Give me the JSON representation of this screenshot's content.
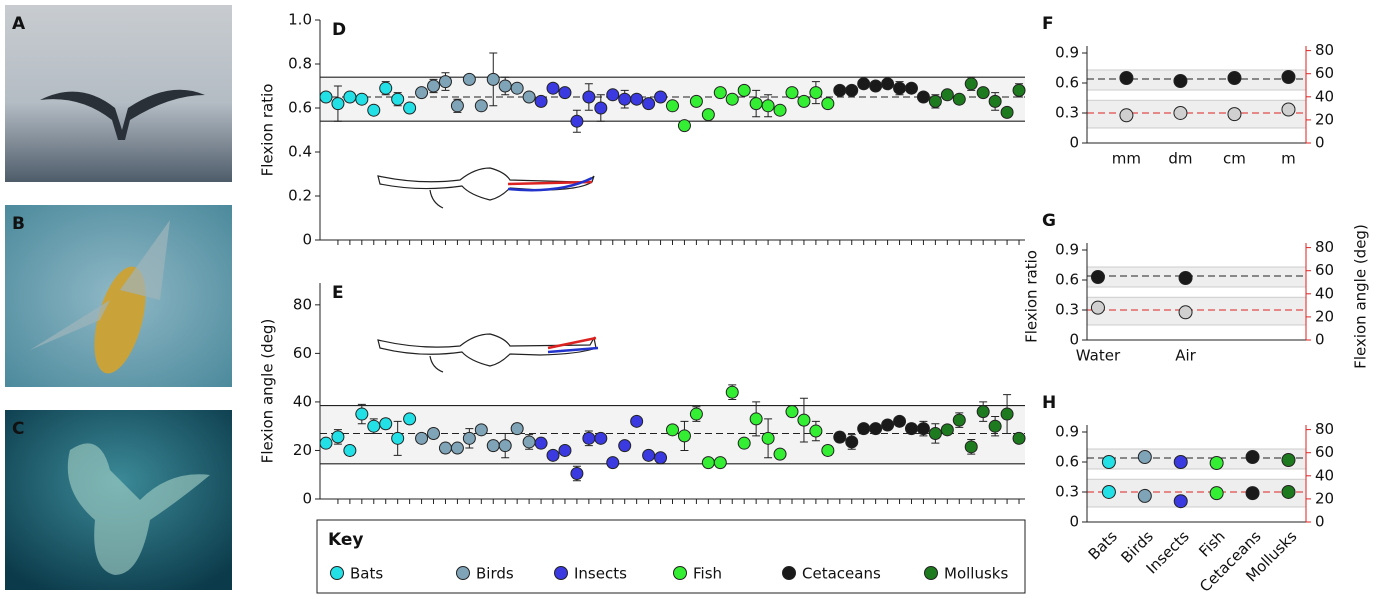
{
  "photos": [
    "A",
    "B",
    "C"
  ],
  "chart_data": [
    {
      "type": "dotplot",
      "label": "D",
      "ylabel": "Flexion ratio",
      "legend_title": "Key",
      "ylim": [
        0,
        1
      ],
      "yticks": [
        0,
        0.2,
        0.4,
        0.6,
        0.8,
        {
          "value": 1,
          "label": "1.0"
        }
      ],
      "band": [
        0.54,
        0.74
      ],
      "mean": 0.65,
      "series": [
        {
          "name": "Bats",
          "color": "#22e0e6",
          "values": [
            0.65,
            0.62,
            0.65,
            0.64,
            0.59,
            0.69,
            0.64,
            0.6
          ],
          "errors": [
            0.02,
            0.08,
            0.02,
            0.02,
            0.02,
            0.03,
            0.03,
            0.02
          ]
        },
        {
          "name": "Birds",
          "color": "#7fa4b8",
          "values": [
            0.67,
            0.7,
            0.72,
            0.61,
            0.73,
            0.61,
            0.73,
            0.7,
            0.69,
            0.65
          ],
          "errors": [
            0.02,
            0.03,
            0.04,
            0.03,
            0.02,
            0.02,
            0.12,
            0.04,
            0.02,
            0.02
          ]
        },
        {
          "name": "Insects",
          "color": "#3a3ae0",
          "values": [
            0.63,
            0.69,
            0.67,
            0.54,
            0.65,
            0.6,
            0.66,
            0.64,
            0.64,
            0.62,
            0.65
          ],
          "errors": [
            0.02,
            0.02,
            0.02,
            0.05,
            0.06,
            0.06,
            0.02,
            0.04,
            0.02,
            0.02,
            0.02
          ]
        },
        {
          "name": "Fish",
          "color": "#33ee33",
          "values": [
            0.61,
            0.52,
            0.63,
            0.57,
            0.67,
            0.64,
            0.68,
            0.62,
            0.61,
            0.59,
            0.67,
            0.63,
            0.67,
            0.62
          ],
          "errors": [
            0.02,
            0.02,
            0.02,
            0.02,
            0.02,
            0.02,
            0.02,
            0.06,
            0.05,
            0.02,
            0.02,
            0.02,
            0.05,
            0.02
          ]
        },
        {
          "name": "Cetaceans",
          "color": "#1a1a1a",
          "values": [
            0.68,
            0.68,
            0.71,
            0.7,
            0.71,
            0.69,
            0.69,
            0.65
          ],
          "errors": [
            0.02,
            0.02,
            0.02,
            0.02,
            0.02,
            0.03,
            0.02,
            0.02
          ]
        },
        {
          "name": "Mollusks",
          "color": "#1e7a1e",
          "values": [
            0.63,
            0.66,
            0.64,
            0.71,
            0.67,
            0.63,
            0.58,
            0.68
          ],
          "errors": [
            0.03,
            0.02,
            0.02,
            0.03,
            0.02,
            0.04,
            0.02,
            0.03
          ]
        }
      ]
    },
    {
      "type": "dotplot",
      "label": "E",
      "ylabel": "Flexion angle (deg)",
      "ylim": [
        0,
        89
      ],
      "yticks": [
        0,
        20,
        40,
        60,
        80
      ],
      "band": [
        14.5,
        38.5
      ],
      "mean": 27,
      "series": [
        {
          "color": "#22e0e6",
          "values": [
            23,
            25.6,
            20,
            35,
            30,
            31,
            25,
            33
          ],
          "errors": [
            1.5,
            3,
            2,
            4,
            3,
            2,
            7,
            1.5
          ]
        },
        {
          "color": "#7fa4b8",
          "values": [
            25,
            27,
            21,
            21,
            25,
            28.5,
            22,
            22,
            29,
            23.5
          ],
          "errors": [
            1.5,
            2,
            2,
            1.5,
            4,
            1.5,
            2,
            5,
            2,
            3
          ]
        },
        {
          "color": "#3a3ae0",
          "values": [
            23,
            18,
            20,
            10.5,
            25,
            25,
            15,
            22,
            32,
            18,
            17
          ],
          "errors": [
            2,
            1.5,
            1.5,
            3,
            3,
            1.5,
            1.5,
            1.5,
            1.5,
            1.5,
            1.5
          ]
        },
        {
          "color": "#33ee33",
          "values": [
            28.5,
            26,
            35,
            15,
            15,
            44,
            23,
            33,
            25,
            18.5,
            36,
            32.5,
            28,
            20
          ],
          "errors": [
            2,
            6,
            3,
            1.5,
            1.5,
            3,
            1.5,
            7,
            8,
            1.5,
            2,
            9,
            4,
            2
          ]
        },
        {
          "color": "#1a1a1a",
          "values": [
            25.5,
            23.5,
            29,
            29,
            30.5,
            32,
            29,
            29
          ],
          "errors": [
            2,
            3,
            1.5,
            1.5,
            1.5,
            1.5,
            2,
            3
          ]
        },
        {
          "color": "#1e7a1e",
          "values": [
            27,
            28.5,
            32.5,
            21.5,
            36,
            30,
            35,
            25
          ],
          "errors": [
            4,
            1.5,
            3,
            3,
            4,
            4,
            8,
            2
          ]
        }
      ]
    },
    {
      "type": "dualdot",
      "label": "F",
      "categories": [
        "mm",
        "dm",
        "cm",
        "m"
      ],
      "ylim": [
        0,
        0.97
      ],
      "yticks": [
        0,
        0.3,
        0.6,
        0.9
      ],
      "y2lim": [
        0,
        84
      ],
      "y2ticks": [
        0,
        20,
        40,
        60,
        80
      ],
      "band": [
        0.53,
        0.73
      ],
      "mean": 0.64,
      "y2band": [
        13,
        37
      ],
      "y2mean": 26,
      "series": [
        {
          "color": "#1a1a1a",
          "values": [
            0.65,
            0.62,
            0.65,
            0.66
          ]
        },
        {
          "axis": "y2",
          "color": "#d0d0d0",
          "values": [
            24,
            26,
            25,
            29
          ]
        }
      ]
    },
    {
      "type": "dualdot",
      "label": "G",
      "ylabel": "Flexion ratio",
      "y2label": "Flexion angle (deg)",
      "categories": [
        "Water",
        "Air"
      ],
      "ylim": [
        0,
        0.97
      ],
      "yticks": [
        0,
        0.3,
        0.6,
        0.9
      ],
      "y2lim": [
        0,
        84
      ],
      "y2ticks": [
        0,
        20,
        40,
        60,
        80
      ],
      "band": [
        0.53,
        0.73
      ],
      "mean": 0.64,
      "y2band": [
        13,
        37
      ],
      "y2mean": 26,
      "series": [
        {
          "color": "#1a1a1a",
          "values": [
            0.63,
            0.62
          ]
        },
        {
          "axis": "y2",
          "color": "#d0d0d0",
          "values": [
            28,
            24
          ]
        }
      ]
    },
    {
      "type": "dualdot",
      "label": "H",
      "categories": [
        "Bats",
        "Birds",
        "Insects",
        "Fish",
        "Cetaceans",
        "Mollusks"
      ],
      "ylim": [
        0,
        0.97
      ],
      "yticks": [
        0,
        0.3,
        0.6,
        0.9
      ],
      "y2lim": [
        0,
        84
      ],
      "y2ticks": [
        0,
        20,
        40,
        60,
        80
      ],
      "band": [
        0.53,
        0.73
      ],
      "mean": 0.64,
      "y2band": [
        13,
        37
      ],
      "y2mean": 26,
      "series": [
        {
          "colors": [
            "#22e0e6",
            "#7fa4b8",
            "#3a3ae0",
            "#33ee33",
            "#1a1a1a",
            "#1e7a1e"
          ],
          "values": [
            0.6,
            0.65,
            0.6,
            0.59,
            0.65,
            0.62
          ]
        },
        {
          "axis": "y2",
          "colors": [
            "#22e0e6",
            "#7fa4b8",
            "#3a3ae0",
            "#33ee33",
            "#1a1a1a",
            "#1e7a1e"
          ],
          "values": [
            26,
            22.6,
            18,
            25,
            25,
            26
          ]
        }
      ]
    }
  ]
}
